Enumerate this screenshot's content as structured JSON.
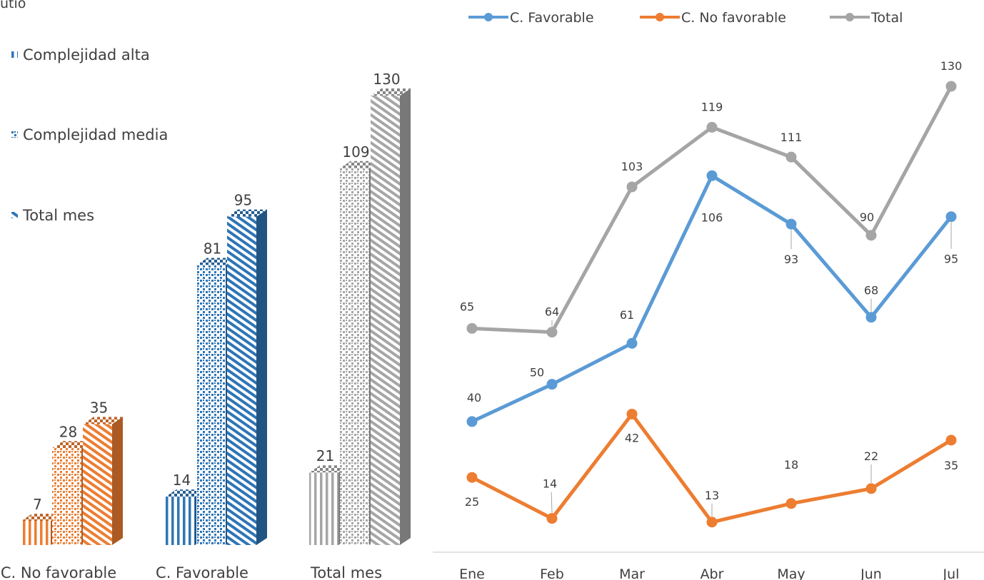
{
  "header": {
    "title_fragment": "utio"
  },
  "chart_data": [
    {
      "type": "bar",
      "style": "3d-column",
      "categories": [
        "C. No favorable",
        "C. Favorable",
        "Total mes"
      ],
      "series": [
        {
          "name": "Complejidad alta",
          "values": [
            7,
            14,
            21
          ],
          "pattern": "vertical-stripes"
        },
        {
          "name": "Complejidad media",
          "values": [
            28,
            81,
            109
          ],
          "pattern": "dots"
        },
        {
          "name": "Total mes",
          "values": [
            35,
            95,
            130
          ],
          "pattern": "diagonal-stripes"
        }
      ],
      "category_colors": [
        "#ED7D31",
        "#2E75B6",
        "#A6A6A6"
      ],
      "legend_position": "top-left",
      "ylim": [
        0,
        130
      ]
    },
    {
      "type": "line",
      "categories": [
        "Ene",
        "Feb",
        "Mar",
        "Abr",
        "May",
        "Jun",
        "Jul"
      ],
      "series": [
        {
          "name": "C. Favorable",
          "color": "#5B9BD5",
          "values": [
            40,
            50,
            61,
            106,
            93,
            68,
            95
          ]
        },
        {
          "name": "C. No favorable",
          "color": "#ED7D31",
          "values": [
            25,
            14,
            42,
            13,
            18,
            22,
            35
          ]
        },
        {
          "name": "Total",
          "color": "#A5A5A5",
          "values": [
            65,
            64,
            103,
            119,
            111,
            90,
            130
          ]
        }
      ],
      "legend_position": "top",
      "grid": false
    }
  ]
}
